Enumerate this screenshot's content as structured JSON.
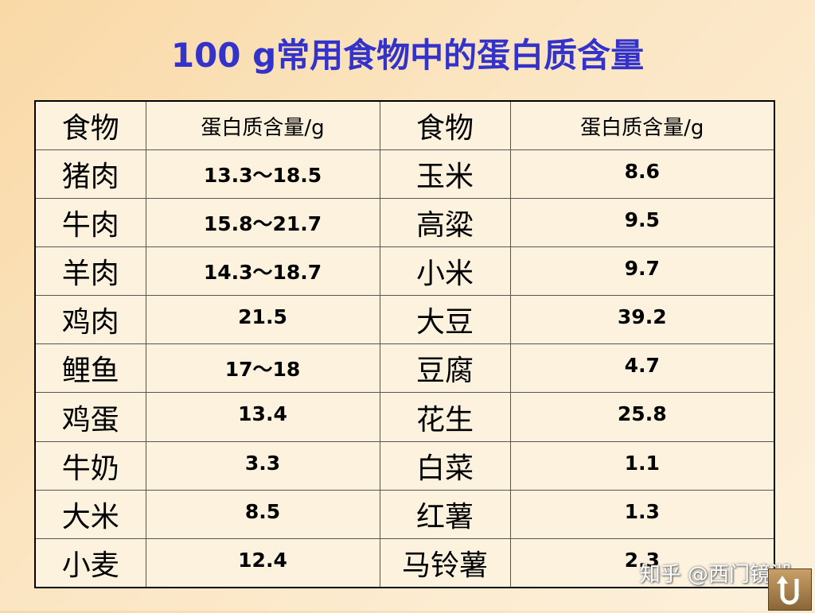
{
  "header": {
    "title": "100 g常用食物中的蛋白质含量"
  },
  "table": {
    "columns": [
      "食物",
      "蛋白质含量/g",
      "食物",
      "蛋白质含量/g"
    ],
    "rows": [
      [
        "猪肉",
        "13.3～18.5",
        "玉米",
        "8.6"
      ],
      [
        "牛肉",
        "15.8～21.7",
        "高粱",
        "9.5"
      ],
      [
        "羊肉",
        "14.3～18.7",
        "小米",
        "9.7"
      ],
      [
        "鸡肉",
        "21.5",
        "大豆",
        "39.2"
      ],
      [
        "鲤鱼",
        "17～18",
        "豆腐",
        "4.7"
      ],
      [
        "鸡蛋",
        "13.4",
        "花生",
        "25.8"
      ],
      [
        "牛奶",
        "3.3",
        "白菜",
        "1.1"
      ],
      [
        "大米",
        "8.5",
        "红薯",
        "1.3"
      ],
      [
        "小麦",
        "12.4",
        "马铃薯",
        "2.3"
      ]
    ]
  },
  "watermark": "知乎 @西门镜湖"
}
